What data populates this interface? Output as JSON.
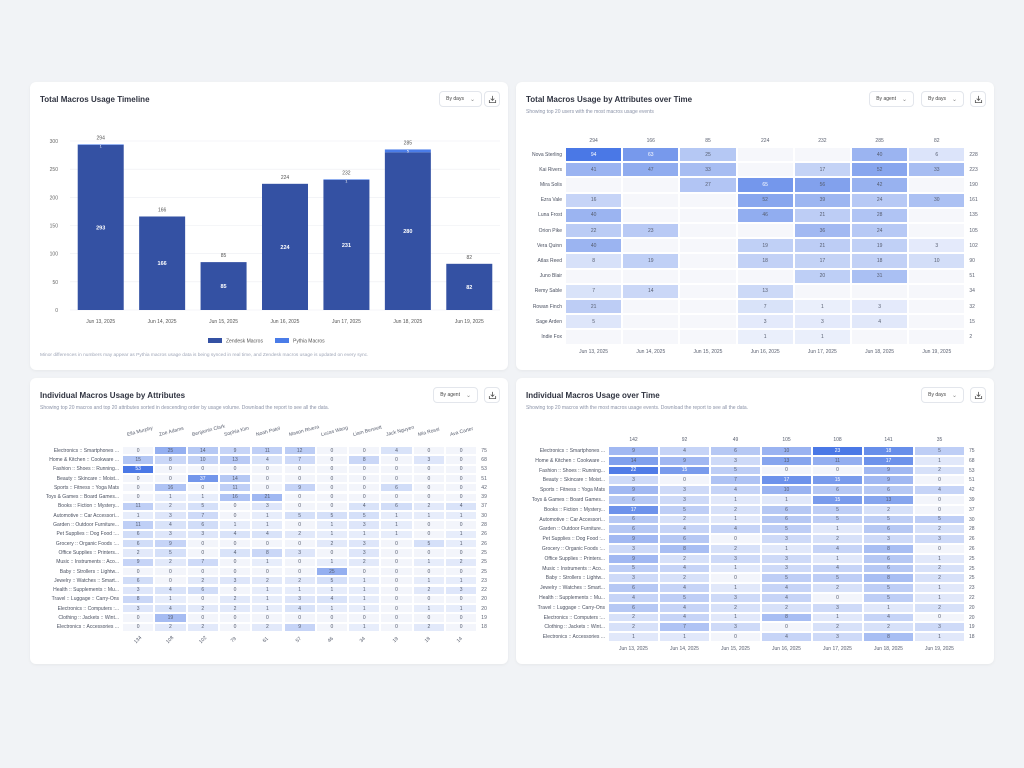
{
  "colors": {
    "zendesk": "#3451a3",
    "pythia": "#4a7ce8",
    "heat_high": "#4a78e6",
    "heat_low": "#eef2fc",
    "empty": "#f6f7fb"
  },
  "timeline": {
    "title": "Total Macros Usage Timeline",
    "dropdown": "By days",
    "download_icon": "download-icon",
    "footnote": "Minor differences in numbers may appear as Pythia macros usage data is being synced in real time, and Zendesk macros usage is updated on every sync.",
    "legend": [
      "Zendesk Macros",
      "Pythia Macros"
    ]
  },
  "chart_data": {
    "type": "bar",
    "stacked": true,
    "categories": [
      "Jun 13, 2025",
      "Jun 14, 2025",
      "Jun 15, 2025",
      "Jun 16, 2025",
      "Jun 17, 2025",
      "Jun 18, 2025",
      "Jun 19, 2025"
    ],
    "series": [
      {
        "name": "Zendesk Macros",
        "values": [
          293,
          166,
          85,
          224,
          231,
          280,
          82
        ]
      },
      {
        "name": "Pythia Macros",
        "values": [
          1,
          0,
          0,
          0,
          1,
          5,
          0
        ]
      }
    ],
    "totals": [
      294,
      166,
      85,
      224,
      232,
      285,
      82
    ],
    "yticks": [
      0,
      50,
      100,
      150,
      200,
      250,
      300
    ],
    "ylim": [
      0,
      300
    ],
    "grid": true,
    "legend": "bottom"
  },
  "attr_time": {
    "title": "Total Macros Usage by Attributes over Time",
    "subtitle": "Showing top 20 users with the most macros usage events",
    "dropdown_agent": "By agent",
    "dropdown_days": "By days",
    "cols": [
      "Jun 13, 2025",
      "Jun 14, 2025",
      "Jun 15, 2025",
      "Jun 16, 2025",
      "Jun 17, 2025",
      "Jun 18, 2025",
      "Jun 19, 2025"
    ],
    "col_totals": [
      294,
      166,
      85,
      224,
      232,
      285,
      82
    ],
    "rows": [
      "Nova Sterling",
      "Kai Rivers",
      "Mira Solis",
      "Ezra Vale",
      "Luna Frost",
      "Orion Pike",
      "Vera Quinn",
      "Atlas Reed",
      "Juno Blair",
      "Remy Sable",
      "Rowan Finch",
      "Sage Arden",
      "Indie Fox"
    ],
    "row_totals": [
      228,
      223,
      190,
      161,
      135,
      105,
      102,
      90,
      51,
      34,
      32,
      15,
      2
    ],
    "values": [
      [
        94,
        63,
        25,
        null,
        null,
        40,
        6
      ],
      [
        41,
        47,
        33,
        null,
        17,
        52,
        33
      ],
      [
        null,
        null,
        27,
        65,
        56,
        42,
        null
      ],
      [
        16,
        null,
        null,
        52,
        39,
        24,
        30
      ],
      [
        40,
        null,
        null,
        46,
        21,
        28,
        null
      ],
      [
        22,
        23,
        null,
        null,
        36,
        24,
        null
      ],
      [
        40,
        null,
        null,
        19,
        21,
        19,
        3
      ],
      [
        8,
        19,
        null,
        18,
        17,
        18,
        10
      ],
      [
        null,
        null,
        null,
        null,
        20,
        31,
        null
      ],
      [
        7,
        14,
        null,
        13,
        null,
        null,
        null
      ],
      [
        21,
        null,
        null,
        7,
        1,
        3,
        null
      ],
      [
        5,
        null,
        null,
        3,
        3,
        4,
        null
      ],
      [
        null,
        null,
        null,
        1,
        1,
        null,
        null
      ]
    ]
  },
  "indiv_attr": {
    "title": "Individual Macros Usage by Attributes",
    "subtitle": "Showing top 20 macros and top 20 attributes sorted in descending order by usage volume. Download the report to see all the data.",
    "dropdown": "By agent",
    "cols": [
      "Ella Murphy",
      "Zoe Adams",
      "Benjamin Clark",
      "Sophia Kim",
      "Noah Patel",
      "Mason Rivera",
      "Lucas Wang",
      "Liam Bennett",
      "Jack Nguyen",
      "Mia Rossi",
      "Ava Carter"
    ],
    "col_totals": [
      134,
      108,
      102,
      79,
      61,
      57,
      46,
      34,
      19,
      18,
      14
    ],
    "rows": [
      "Electronics :: Smartphones ...",
      "Home & Kitchen :: Cookware ...",
      "Fashion :: Shoes :: Running...",
      "Beauty :: Skincare :: Moist...",
      "Sports :: Fitness :: Yoga Mats",
      "Toys & Games :: Board Games...",
      "Books :: Fiction :: Mystery...",
      "Automotive :: Car Accessori...",
      "Garden :: Outdoor Furniture...",
      "Pet Supplies :: Dog Food :...",
      "Grocery :: Organic Foods :...",
      "Office Supplies :: Printers...",
      "Music :: Instruments :: Aco...",
      "Baby :: Strollers :: Lightw...",
      "Jewelry :: Watches :: Smart...",
      "Health :: Supplements :: Mu...",
      "Travel :: Luggage :: Carry-Ons",
      "Electronics :: Computers :...",
      "Clothing :: Jackets :: Wint...",
      "Electronics :: Accessories ..."
    ],
    "row_totals": [
      75,
      68,
      53,
      51,
      42,
      39,
      37,
      30,
      28,
      26,
      26,
      25,
      25,
      25,
      23,
      22,
      20,
      20,
      19,
      18
    ],
    "values": [
      [
        0,
        25,
        14,
        9,
        11,
        12,
        0,
        0,
        4,
        0,
        0
      ],
      [
        15,
        8,
        10,
        13,
        4,
        7,
        0,
        8,
        0,
        3,
        0
      ],
      [
        53,
        0,
        0,
        0,
        0,
        0,
        0,
        0,
        0,
        0,
        0
      ],
      [
        0,
        0,
        37,
        14,
        0,
        0,
        0,
        0,
        0,
        0,
        0
      ],
      [
        0,
        16,
        0,
        11,
        0,
        9,
        0,
        0,
        6,
        0,
        0
      ],
      [
        0,
        1,
        1,
        16,
        21,
        0,
        0,
        0,
        0,
        0,
        0
      ],
      [
        11,
        2,
        5,
        0,
        3,
        0,
        0,
        4,
        6,
        2,
        4
      ],
      [
        1,
        3,
        7,
        0,
        1,
        5,
        5,
        5,
        1,
        1,
        1
      ],
      [
        11,
        4,
        6,
        1,
        1,
        0,
        1,
        3,
        1,
        0,
        0
      ],
      [
        6,
        3,
        3,
        4,
        4,
        2,
        1,
        1,
        1,
        0,
        1
      ],
      [
        6,
        9,
        0,
        0,
        0,
        0,
        2,
        3,
        0,
        5,
        1
      ],
      [
        2,
        5,
        0,
        4,
        8,
        3,
        0,
        3,
        0,
        0,
        0
      ],
      [
        9,
        2,
        7,
        0,
        1,
        0,
        1,
        2,
        0,
        1,
        2
      ],
      [
        0,
        0,
        0,
        0,
        0,
        0,
        25,
        0,
        0,
        0,
        0
      ],
      [
        6,
        0,
        2,
        3,
        2,
        2,
        5,
        1,
        0,
        1,
        1
      ],
      [
        3,
        4,
        6,
        0,
        1,
        1,
        1,
        1,
        0,
        2,
        3
      ],
      [
        8,
        1,
        0,
        2,
        1,
        3,
        4,
        1,
        0,
        0,
        0
      ],
      [
        3,
        4,
        2,
        2,
        1,
        4,
        1,
        1,
        0,
        1,
        1
      ],
      [
        0,
        19,
        0,
        0,
        0,
        0,
        0,
        0,
        0,
        0,
        0
      ],
      [
        0,
        2,
        2,
        0,
        2,
        9,
        0,
        1,
        0,
        2,
        0
      ]
    ]
  },
  "indiv_time": {
    "title": "Individual Macros Usage over Time",
    "subtitle": "Showing top 20 macros with the most macros usage events. Download the report to see all the data.",
    "dropdown": "By days",
    "cols": [
      "Jun 13, 2025",
      "Jun 14, 2025",
      "Jun 15, 2025",
      "Jun 16, 2025",
      "Jun 17, 2025",
      "Jun 18, 2025",
      "Jun 19, 2025"
    ],
    "col_totals": [
      142,
      92,
      49,
      105,
      108,
      141,
      35
    ],
    "rows": [
      "Electronics :: Smartphones ...",
      "Home & Kitchen :: Cookware ...",
      "Fashion :: Shoes :: Running...",
      "Beauty :: Skincare :: Moist...",
      "Sports :: Fitness :: Yoga Mats",
      "Toys & Games :: Board Games...",
      "Books :: Fiction :: Mystery...",
      "Automotive :: Car Accessori...",
      "Garden :: Outdoor Furniture...",
      "Pet Supplies :: Dog Food :...",
      "Grocery :: Organic Foods :...",
      "Office Supplies :: Printers...",
      "Music :: Instruments :: Aco...",
      "Baby :: Strollers :: Lightw...",
      "Jewelry :: Watches :: Smart...",
      "Health :: Supplements :: Mu...",
      "Travel :: Luggage :: Carry-Ons",
      "Electronics :: Computers :...",
      "Clothing :: Jackets :: Wint...",
      "Electronics :: Accessories ..."
    ],
    "row_totals": [
      75,
      68,
      53,
      51,
      42,
      39,
      37,
      30,
      28,
      26,
      26,
      25,
      25,
      25,
      23,
      22,
      20,
      20,
      19,
      18
    ],
    "values": [
      [
        9,
        4,
        6,
        10,
        23,
        18,
        5
      ],
      [
        14,
        9,
        3,
        13,
        11,
        17,
        1
      ],
      [
        22,
        15,
        5,
        0,
        0,
        9,
        2
      ],
      [
        3,
        0,
        7,
        17,
        15,
        9,
        0
      ],
      [
        9,
        3,
        4,
        10,
        6,
        6,
        4
      ],
      [
        6,
        3,
        1,
        1,
        15,
        13,
        0
      ],
      [
        17,
        5,
        2,
        6,
        5,
        2,
        0
      ],
      [
        6,
        2,
        1,
        6,
        5,
        5,
        5
      ],
      [
        6,
        4,
        4,
        5,
        1,
        6,
        2
      ],
      [
        9,
        6,
        0,
        3,
        2,
        3,
        3
      ],
      [
        3,
        8,
        2,
        1,
        4,
        8,
        0
      ],
      [
        9,
        2,
        3,
        3,
        1,
        6,
        1
      ],
      [
        5,
        4,
        1,
        3,
        4,
        6,
        2
      ],
      [
        3,
        2,
        0,
        5,
        5,
        8,
        2
      ],
      [
        6,
        4,
        1,
        4,
        2,
        5,
        1
      ],
      [
        4,
        5,
        3,
        4,
        0,
        5,
        1
      ],
      [
        6,
        4,
        2,
        2,
        3,
        1,
        2
      ],
      [
        2,
        4,
        1,
        8,
        1,
        4,
        0
      ],
      [
        2,
        7,
        3,
        0,
        2,
        2,
        3
      ],
      [
        1,
        1,
        0,
        4,
        3,
        8,
        1
      ]
    ]
  }
}
